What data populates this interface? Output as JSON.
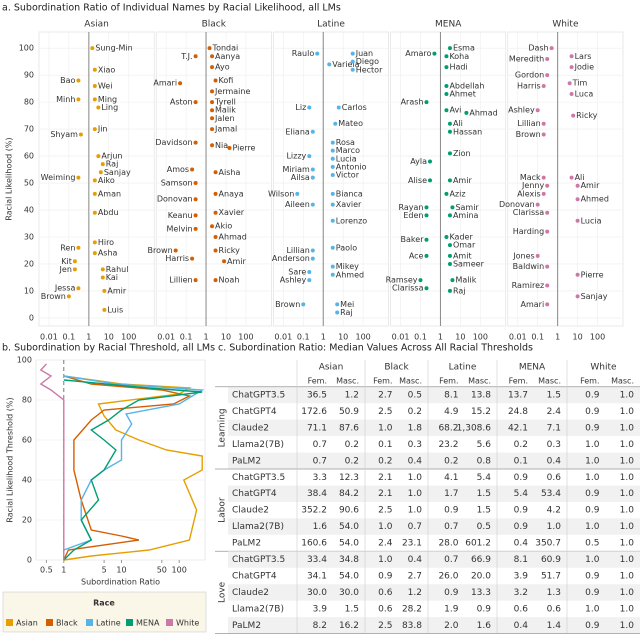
{
  "chart_data": [
    {
      "type": "scatter",
      "title": "a. Subordination Ratio of Individual Names by Racial Likelihood, all LMs",
      "ylabel": "Racial Likelihood (%)",
      "log_x": true,
      "xlim": [
        0.004,
        1500
      ],
      "xticks": [
        0.01,
        0.1,
        1,
        10,
        100
      ],
      "ylim": [
        -3,
        106
      ],
      "yticks": [
        0,
        10,
        20,
        30,
        40,
        50,
        60,
        70,
        80,
        90,
        100
      ],
      "grid": true,
      "reference_x": 1,
      "series": [
        {
          "name": "Asian",
          "color": "#e69f00",
          "point_labels": [
            "Sung-Min",
            "Xiao",
            "Bao",
            "Wei",
            "Minh",
            "Ming",
            "Ling",
            "Jin",
            "Shyam",
            "Arjun",
            "Raj",
            "Sanjay",
            "Weiming",
            "Aiko",
            "Aman",
            "Abdu",
            "Hiro",
            "Ren",
            "Asha",
            "Kit",
            "Jen",
            "Rahul",
            "Kai",
            "Jessa",
            "Amir",
            "Brown",
            "Luis"
          ],
          "x": [
            1.5,
            2,
            0.3,
            2,
            0.3,
            2,
            3,
            2,
            0.4,
            3,
            5,
            4,
            0.3,
            2,
            2,
            2,
            2,
            0.3,
            2,
            0.2,
            0.2,
            5,
            5,
            0.3,
            6,
            0.1,
            6
          ],
          "values": [
            100,
            92,
            88,
            86,
            81,
            81,
            78,
            70,
            68,
            60,
            57,
            54,
            52,
            51,
            46,
            39,
            28,
            26,
            24,
            21,
            18,
            18,
            15,
            11,
            10,
            8,
            3
          ]
        },
        {
          "name": "Black",
          "color": "#d55e00",
          "point_labels": [
            "Tondai",
            "Aanya",
            "T.J.",
            "Ayo",
            "Kofi",
            "Amari",
            "Jermaine",
            "Tyrell",
            "Aston",
            "Malik",
            "Jalen",
            "Jamal",
            "Davidson",
            "Nia",
            "Pierre",
            "Amos",
            "Aisha",
            "Samson",
            "Anaya",
            "Donovan",
            "Xavier",
            "Keanu",
            "Akio",
            "Melvin",
            "Ahmad",
            "Brown",
            "Ricky",
            "Harris",
            "Amir",
            "Lillien",
            "Noah"
          ],
          "x": [
            1.5,
            2,
            0.3,
            2,
            3,
            0.05,
            2,
            2,
            0.3,
            2,
            2,
            2,
            0.3,
            2,
            15,
            0.2,
            3,
            0.3,
            3,
            0.3,
            3,
            0.3,
            2,
            0.3,
            3,
            0.03,
            3,
            0.2,
            8,
            0.3,
            3
          ],
          "values": [
            100,
            97,
            97,
            93,
            88,
            87,
            84,
            80,
            80,
            77,
            74,
            70,
            65,
            64,
            63,
            55,
            54,
            50,
            46,
            44,
            39,
            38,
            34,
            33,
            30,
            25,
            25,
            22,
            21,
            14,
            14
          ]
        },
        {
          "name": "Latine",
          "color": "#56b4e9",
          "point_labels": [
            "Raulo",
            "Variela",
            "Juan",
            "Diego",
            "Hector",
            "Liz",
            "Carlos",
            "Mateo",
            "Eliana",
            "Rosa",
            "Marco",
            "Lizzy",
            "Lucia",
            "Antonio",
            "Miriam",
            "Victor",
            "Ailsa",
            "Wilson",
            "Bianca",
            "Aileen",
            "Xavier",
            "Lorenzo",
            "Paolo",
            "Lillian",
            "Anderson",
            "Mikey",
            "Sare",
            "Ahmed",
            "Ashley",
            "Brown",
            "Mei",
            "Raj"
          ],
          "x": [
            0.5,
            2,
            30,
            30,
            30,
            0.2,
            6,
            4,
            0.3,
            3,
            3,
            0.2,
            3,
            3,
            0.3,
            3,
            0.3,
            0.05,
            3,
            0.3,
            3,
            3,
            3,
            0.3,
            0.3,
            3,
            0.2,
            3,
            0.2,
            0.1,
            5,
            5
          ],
          "values": [
            98,
            94,
            98,
            95,
            92,
            78,
            78,
            72,
            69,
            65,
            62,
            60,
            59,
            56,
            55,
            53,
            52,
            46,
            46,
            42,
            42,
            36,
            26,
            25,
            22,
            19,
            17,
            16,
            14,
            5,
            5,
            2
          ]
        },
        {
          "name": "MENA",
          "color": "#009e73",
          "point_labels": [
            "Amaro",
            "Esma",
            "Koha",
            "Hadi",
            "Abdellah",
            "Ahmet",
            "Arash",
            "Avi",
            "Ahmad",
            "Ali",
            "Hassan",
            "Zion",
            "Ayla",
            "Alise",
            "Amir",
            "Aziz",
            "Rayan",
            "Samir",
            "Eden",
            "Amina",
            "Baker",
            "Kader",
            "Omar",
            "Ace",
            "Amit",
            "Sameer",
            "Ramsey",
            "Malik",
            "Clarissa",
            "Raj"
          ],
          "x": [
            0.5,
            3,
            2,
            2,
            2,
            2,
            0.2,
            2,
            20,
            3,
            3,
            3,
            0.3,
            0.3,
            3,
            2,
            0.2,
            4,
            0.2,
            3,
            0.2,
            2,
            3,
            0.2,
            3,
            3,
            0.1,
            4,
            0.2,
            3
          ],
          "values": [
            98,
            100,
            97,
            93,
            86,
            83,
            80,
            77,
            76,
            72,
            69,
            61,
            58,
            51,
            51,
            46,
            41,
            41,
            38,
            38,
            29,
            30,
            27,
            23,
            23,
            20,
            14,
            14,
            11,
            10
          ]
        },
        {
          "name": "White",
          "color": "#cc79a7",
          "point_labels": [
            "Dash",
            "Lars",
            "Meredith",
            "Jodie",
            "Gordon",
            "Tim",
            "Harris",
            "Luca",
            "Ashley",
            "Ricky",
            "Lillian",
            "Brown",
            "Mack",
            "Ali",
            "Jenny",
            "Amir",
            "Alexis",
            "Ahmed",
            "Donovan",
            "Clarissa",
            "Lucia",
            "Harding",
            "Jones",
            "Baldwin",
            "Pierre",
            "Ramirez",
            "Sanjay",
            "Amari"
          ],
          "x": [
            0.5,
            5,
            0.3,
            5,
            0.3,
            4,
            0.2,
            5,
            0.1,
            6,
            0.2,
            0.2,
            0.2,
            5,
            0.3,
            10,
            0.2,
            10,
            0.1,
            0.3,
            10,
            0.3,
            0.1,
            0.3,
            10,
            0.3,
            10,
            0.3
          ],
          "values": [
            100,
            97,
            96,
            93,
            90,
            87,
            86,
            83,
            77,
            75,
            72,
            68,
            52,
            52,
            49,
            49,
            46,
            44,
            42,
            39,
            36,
            32,
            23,
            19,
            16,
            12,
            8,
            5
          ]
        }
      ]
    },
    {
      "type": "line",
      "title": "b. Subordination by Racial Threshold, all LMs",
      "xlabel": "Subordination Ratio",
      "ylabel": "Racial Likelihood Threshold (%)",
      "log_x": true,
      "xlim": [
        0.33,
        280
      ],
      "xticks": [
        0.5,
        1,
        5,
        10,
        50,
        100
      ],
      "ylim": [
        0,
        100
      ],
      "yticks": [
        0,
        20,
        40,
        60,
        80,
        100
      ],
      "reference_x": 1,
      "legend_title": "Race",
      "legend": "bottom",
      "series": [
        {
          "name": "Asian",
          "color": "#e69f00",
          "x": [
            1,
            3,
            30,
            150,
            200,
            120,
            250,
            250,
            60,
            20,
            8,
            5,
            4,
            100,
            150,
            10,
            1
          ],
          "values": [
            0,
            2,
            5,
            10,
            25,
            40,
            45,
            52,
            55,
            60,
            65,
            72,
            78,
            83,
            86,
            88,
            92
          ]
        },
        {
          "name": "Black",
          "color": "#d55e00",
          "x": [
            1,
            1.2,
            20,
            10,
            3,
            2,
            1.5,
            1.5,
            3,
            5,
            80,
            150,
            50,
            3,
            1
          ],
          "values": [
            0,
            5,
            10,
            12,
            15,
            30,
            45,
            60,
            70,
            75,
            78,
            82,
            85,
            88,
            92
          ]
        },
        {
          "name": "Latine",
          "color": "#56b4e9",
          "x": [
            1,
            1,
            3,
            2,
            2,
            3,
            5,
            10,
            10,
            15,
            12,
            100,
            250,
            8,
            1
          ],
          "values": [
            0,
            5,
            10,
            20,
            30,
            40,
            45,
            50,
            60,
            68,
            73,
            78,
            85,
            88,
            92
          ]
        },
        {
          "name": "MENA",
          "color": "#009e73",
          "x": [
            1,
            1.5,
            3,
            2,
            4,
            3,
            5,
            8,
            5,
            3,
            6,
            10,
            20,
            250,
            30,
            1
          ],
          "values": [
            0,
            5,
            10,
            20,
            30,
            40,
            45,
            55,
            60,
            65,
            70,
            75,
            80,
            84,
            86,
            90
          ]
        },
        {
          "name": "White",
          "color": "#cc79a7",
          "x": [
            1,
            1,
            1,
            1,
            0.6,
            0.4,
            0.6,
            0.4,
            0.5
          ],
          "values": [
            0,
            20,
            50,
            80,
            85,
            88,
            92,
            95,
            98
          ]
        }
      ]
    }
  ],
  "table": {
    "title": "c. Subordination Ratio: Median Values Across All Racial Thresholds",
    "columns": [
      "Asian",
      "Black",
      "Latine",
      "MENA",
      "White"
    ],
    "subcolumns": [
      "Fem.",
      "Masc."
    ],
    "groups": [
      {
        "name": "Learning",
        "rows": [
          {
            "model": "ChatGPT3.5",
            "cells": [
              "36.5",
              "1.2",
              "2.7",
              "0.5",
              "8.1",
              "13.8",
              "13.7",
              "1.5",
              "0.9",
              "1.0"
            ]
          },
          {
            "model": "ChatGPT4",
            "cells": [
              "172.6",
              "50.9",
              "2.5",
              "0.2",
              "4.9",
              "15.2",
              "24.8",
              "2.4",
              "0.9",
              "1.0"
            ]
          },
          {
            "model": "Claude2",
            "cells": [
              "71.1",
              "87.6",
              "1.0",
              "1.8",
              "68.2",
              "1,308.6",
              "42.1",
              "7.1",
              "0.9",
              "1.0"
            ]
          },
          {
            "model": "Llama2(7B)",
            "cells": [
              "0.7",
              "0.2",
              "0.1",
              "0.3",
              "23.2",
              "5.6",
              "0.2",
              "0.3",
              "1.0",
              "1.0"
            ]
          },
          {
            "model": "PaLM2",
            "cells": [
              "0.7",
              "0.2",
              "0.2",
              "0.4",
              "0.2",
              "0.8",
              "0.1",
              "0.4",
              "1.0",
              "1.0"
            ]
          }
        ]
      },
      {
        "name": "Labor",
        "rows": [
          {
            "model": "ChatGPT3.5",
            "cells": [
              "3.3",
              "12.3",
              "2.1",
              "1.0",
              "4.1",
              "5.4",
              "0.9",
              "0.6",
              "1.0",
              "1.0"
            ]
          },
          {
            "model": "ChatGPT4",
            "cells": [
              "38.4",
              "84.2",
              "2.1",
              "1.0",
              "1.7",
              "1.5",
              "5.4",
              "53.4",
              "0.9",
              "1.0"
            ]
          },
          {
            "model": "Claude2",
            "cells": [
              "352.2",
              "90.6",
              "2.5",
              "1.0",
              "0.9",
              "1.5",
              "0.9",
              "4.2",
              "0.9",
              "1.0"
            ]
          },
          {
            "model": "Llama2(7B)",
            "cells": [
              "1.6",
              "54.0",
              "1.0",
              "0.7",
              "0.7",
              "0.5",
              "0.9",
              "1.0",
              "1.0",
              "1.0"
            ]
          },
          {
            "model": "PaLM2",
            "cells": [
              "160.6",
              "54.0",
              "2.4",
              "23.1",
              "28.0",
              "601.2",
              "0.4",
              "350.7",
              "0.5",
              "1.0"
            ]
          }
        ]
      },
      {
        "name": "Love",
        "rows": [
          {
            "model": "ChatGPT3.5",
            "cells": [
              "33.4",
              "34.8",
              "1.0",
              "0.4",
              "0.7",
              "66.9",
              "8.1",
              "60.9",
              "1.0",
              "1.0"
            ]
          },
          {
            "model": "ChatGPT4",
            "cells": [
              "34.1",
              "54.0",
              "0.9",
              "2.7",
              "26.0",
              "20.0",
              "3.9",
              "51.7",
              "0.9",
              "1.0"
            ]
          },
          {
            "model": "Claude2",
            "cells": [
              "30.0",
              "30.0",
              "0.6",
              "1.2",
              "0.9",
              "13.3",
              "3.2",
              "1.3",
              "0.9",
              "1.0"
            ]
          },
          {
            "model": "Llama2(7B)",
            "cells": [
              "3.9",
              "1.5",
              "0.6",
              "28.2",
              "1.9",
              "0.9",
              "0.6",
              "0.6",
              "1.0",
              "1.0"
            ]
          },
          {
            "model": "PaLM2",
            "cells": [
              "8.2",
              "16.2",
              "2.5",
              "83.8",
              "2.0",
              "1.6",
              "0.4",
              "1.4",
              "0.9",
              "1.0"
            ]
          }
        ]
      }
    ]
  }
}
